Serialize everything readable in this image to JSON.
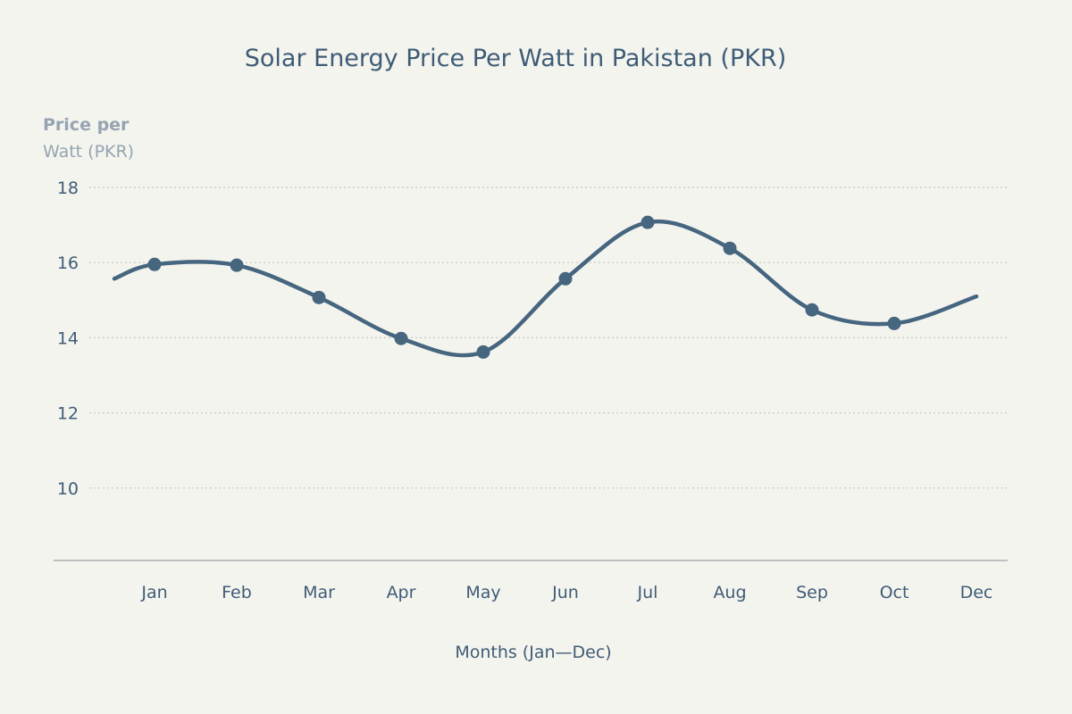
{
  "chart_data": {
    "type": "line",
    "title": "Solar Energy Price Per Watt in Pakistan (PKR)",
    "ylabel_line1": "Price per",
    "ylabel_line2": "Watt (PKR)",
    "xlabel": "Months (Jan—Dec)",
    "categories": [
      "Jan",
      "Feb",
      "Mar",
      "Apr",
      "May",
      "Jun",
      "Jul",
      "Aug",
      "Sep",
      "Oct",
      "Dec"
    ],
    "values": [
      15.95,
      15.93,
      15.07,
      13.98,
      13.62,
      15.57,
      17.07,
      16.38,
      14.74,
      14.38,
      15.1
    ],
    "markers": [
      true,
      true,
      true,
      true,
      true,
      true,
      true,
      true,
      true,
      true,
      false
    ],
    "yticks": [
      10,
      12,
      14,
      16,
      18
    ],
    "ylim": [
      8,
      18
    ],
    "grid": "horizontal dotted",
    "smooth": true,
    "colors": {
      "line": "#46657f",
      "text": "#3f5c75",
      "axis_label": "#95a4b0",
      "grid": "#c8c8c2",
      "background": "#f4f4ef"
    }
  }
}
